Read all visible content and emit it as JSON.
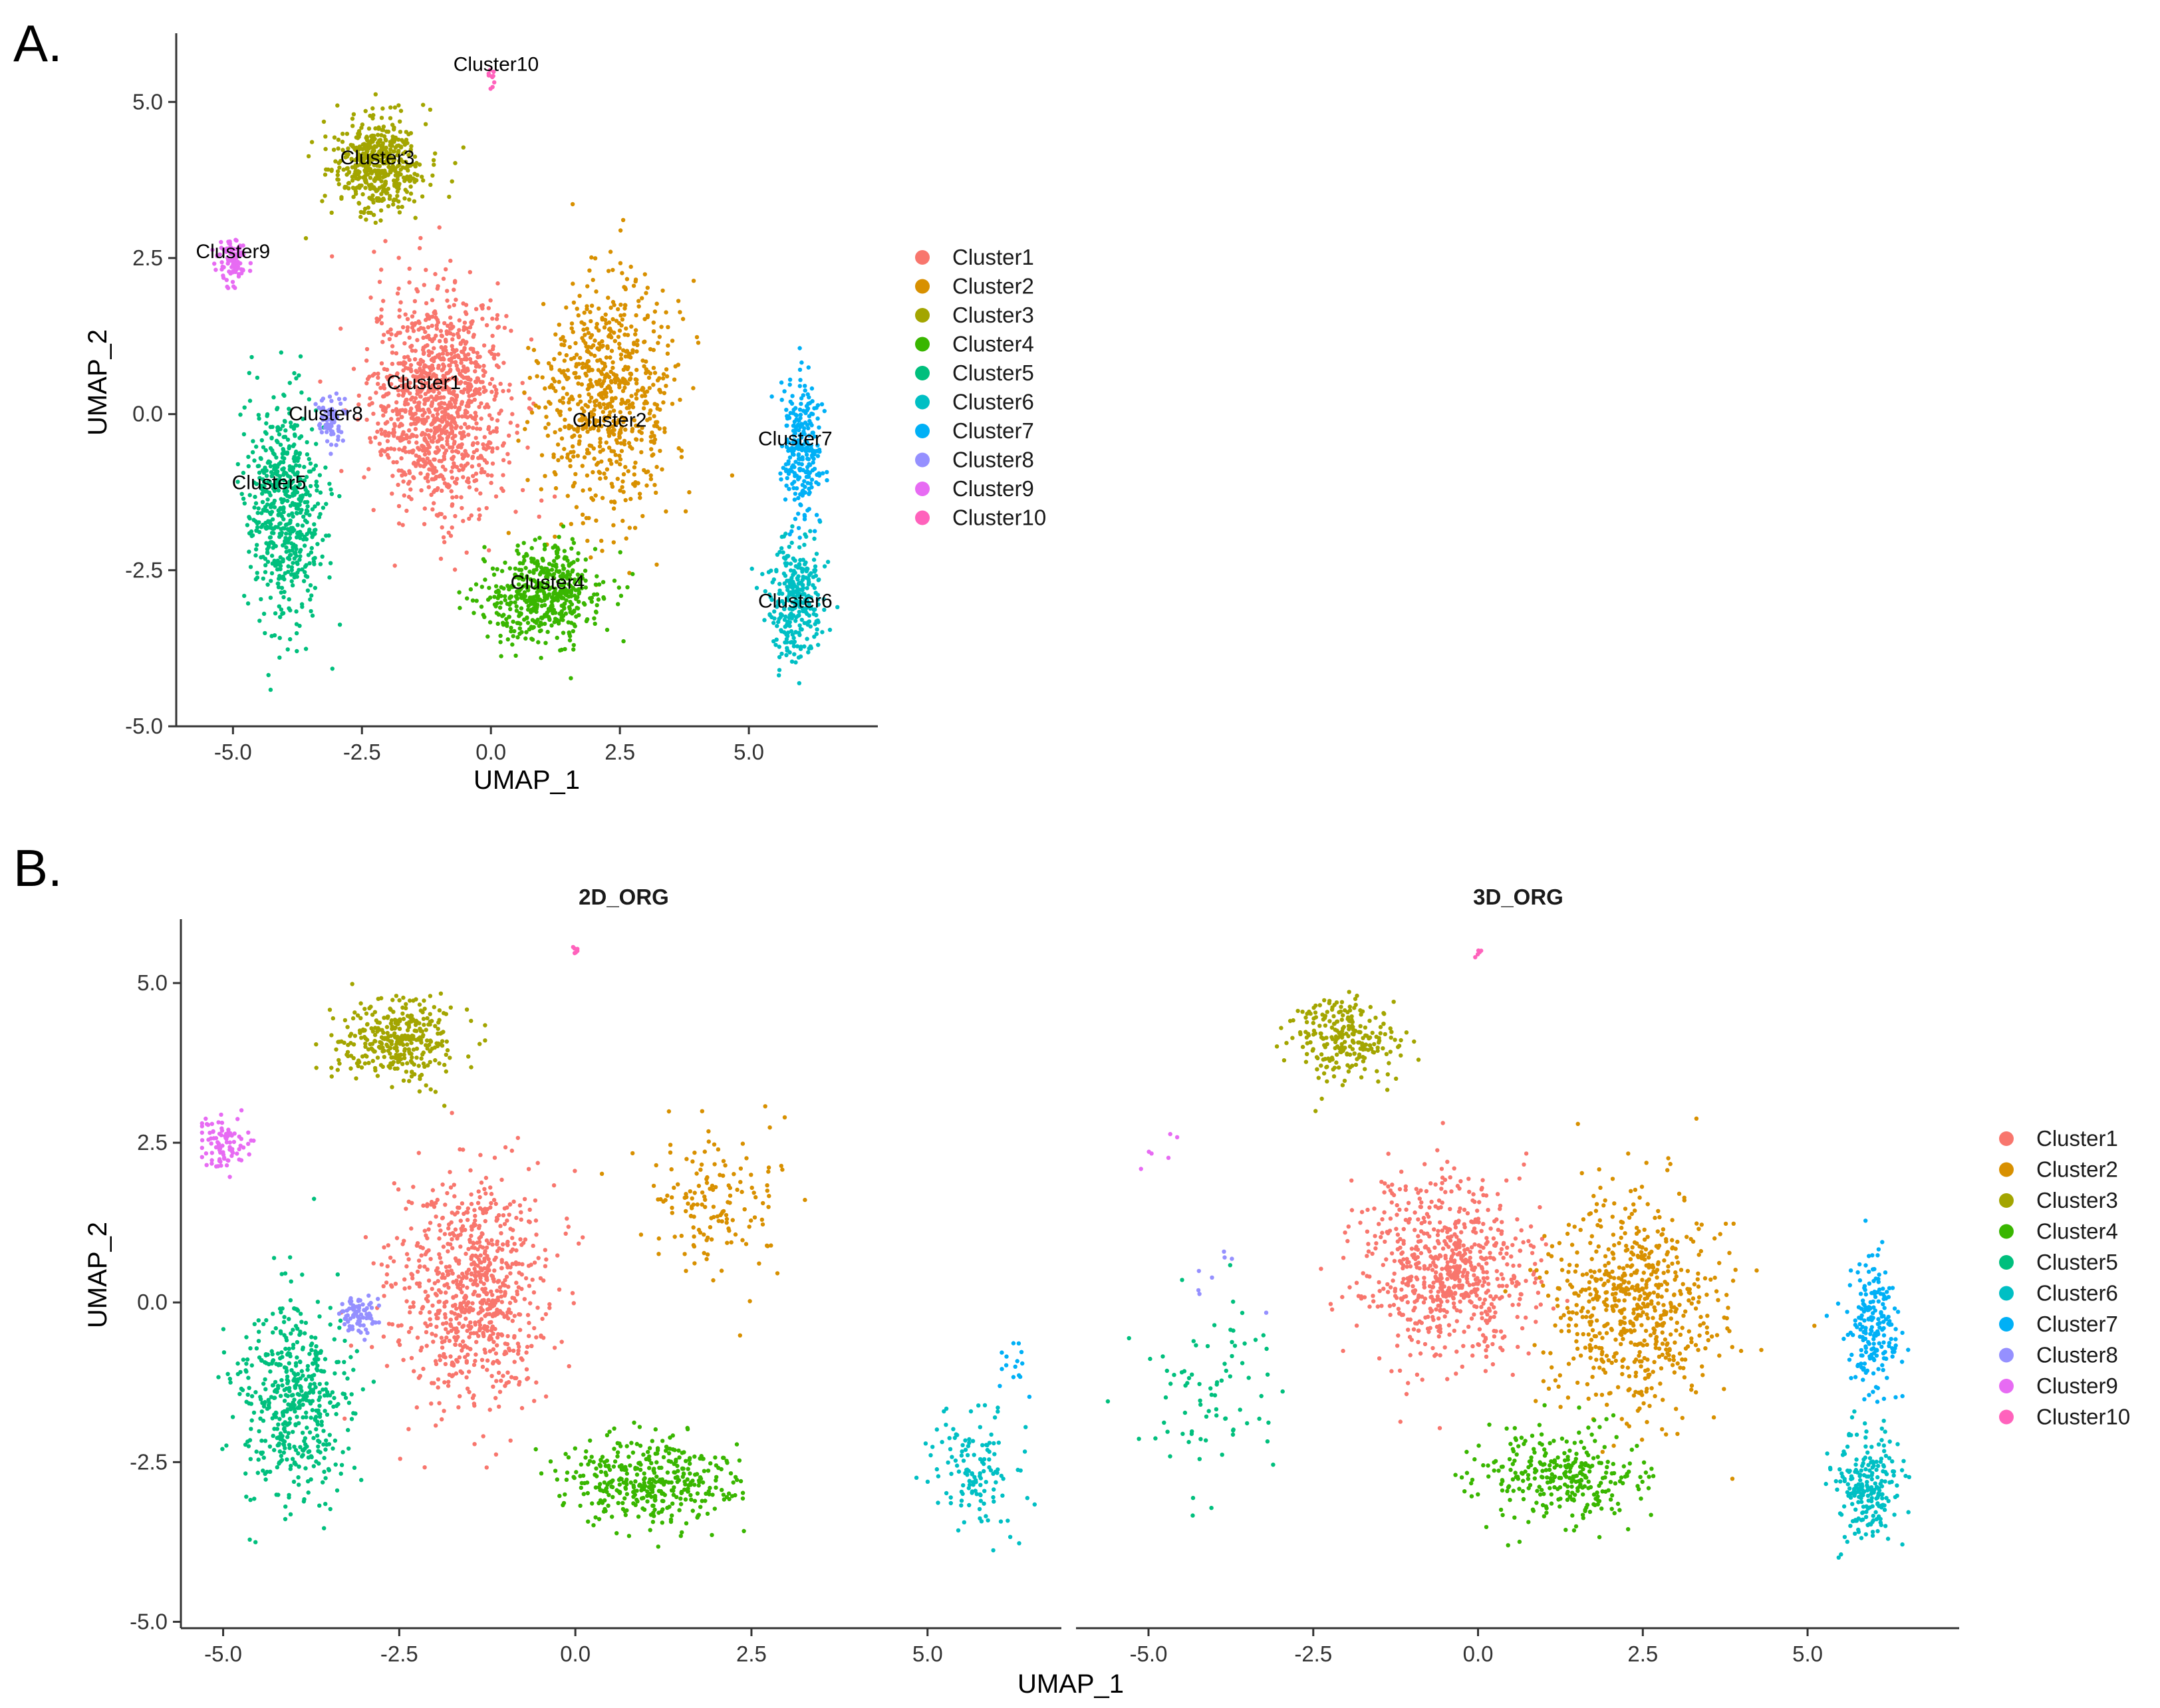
{
  "figure": {
    "panel_a_letter": "A.",
    "panel_b_letter": "B."
  },
  "colors": {
    "Cluster1": "#F8766D",
    "Cluster2": "#D89000",
    "Cluster3": "#A3A500",
    "Cluster4": "#39B600",
    "Cluster5": "#00BF7D",
    "Cluster6": "#00BFC4",
    "Cluster7": "#00B0F6",
    "Cluster8": "#9590FF",
    "Cluster9": "#E76BF3",
    "Cluster10": "#FF62BC"
  },
  "legend": [
    "Cluster1",
    "Cluster2",
    "Cluster3",
    "Cluster4",
    "Cluster5",
    "Cluster6",
    "Cluster7",
    "Cluster8",
    "Cluster9",
    "Cluster10"
  ],
  "chart_data": [
    {
      "id": "A",
      "type": "scatter",
      "title": "",
      "xlabel": "UMAP_1",
      "ylabel": "UMAP_2",
      "xlim": [
        -6.1,
        7.5
      ],
      "ylim": [
        -5.0,
        6.1
      ],
      "xticks": [
        -5.0,
        -2.5,
        0.0,
        2.5,
        5.0
      ],
      "xtick_labels": [
        "-5.0",
        "-2.5",
        "0.0",
        "2.5",
        "5.0"
      ],
      "yticks": [
        -5.0,
        -2.5,
        0.0,
        2.5,
        5.0
      ],
      "ytick_labels": [
        "-5.0",
        "-2.5",
        "0.0",
        "2.5",
        "5.0"
      ],
      "legend_position": "right",
      "cluster_labels": [
        {
          "text": "Cluster10",
          "x": 0.1,
          "y": 5.5
        },
        {
          "text": "Cluster3",
          "x": -2.2,
          "y": 4.0
        },
        {
          "text": "Cluster9",
          "x": -5.0,
          "y": 2.5
        },
        {
          "text": "Cluster1",
          "x": -1.3,
          "y": 0.4
        },
        {
          "text": "Cluster8",
          "x": -3.2,
          "y": -0.1
        },
        {
          "text": "Cluster2",
          "x": 2.3,
          "y": -0.2
        },
        {
          "text": "Cluster7",
          "x": 5.9,
          "y": -0.5
        },
        {
          "text": "Cluster5",
          "x": -4.3,
          "y": -1.2
        },
        {
          "text": "Cluster4",
          "x": 1.1,
          "y": -2.8
        },
        {
          "text": "Cluster6",
          "x": 5.9,
          "y": -3.1
        }
      ],
      "clusters": [
        {
          "name": "Cluster1",
          "center": [
            -1.0,
            0.2
          ],
          "spread": [
            1.2,
            1.6
          ],
          "n": 1100
        },
        {
          "name": "Cluster2",
          "center": [
            2.3,
            0.3
          ],
          "spread": [
            1.2,
            1.7
          ],
          "n": 700
        },
        {
          "name": "Cluster3",
          "center": [
            -2.2,
            4.0
          ],
          "spread": [
            0.8,
            0.7
          ],
          "n": 500
        },
        {
          "name": "Cluster4",
          "center": [
            1.0,
            -2.9
          ],
          "spread": [
            1.1,
            0.7
          ],
          "n": 500
        },
        {
          "name": "Cluster5",
          "center": [
            -4.0,
            -1.5
          ],
          "spread": [
            0.7,
            1.5
          ],
          "n": 600
        },
        {
          "name": "Cluster6",
          "center": [
            5.9,
            -3.0
          ],
          "spread": [
            0.45,
            0.9
          ],
          "n": 300
        },
        {
          "name": "Cluster7",
          "center": [
            6.0,
            -0.5
          ],
          "spread": [
            0.35,
            1.0
          ],
          "n": 250
        },
        {
          "name": "Cluster8",
          "center": [
            -3.1,
            -0.1
          ],
          "spread": [
            0.25,
            0.3
          ],
          "n": 80
        },
        {
          "name": "Cluster9",
          "center": [
            -5.0,
            2.5
          ],
          "spread": [
            0.25,
            0.35
          ],
          "n": 90
        },
        {
          "name": "Cluster10",
          "center": [
            0.0,
            5.4
          ],
          "spread": [
            0.08,
            0.15
          ],
          "n": 10
        }
      ]
    },
    {
      "id": "B-2D_ORG",
      "type": "scatter",
      "title": "2D_ORG",
      "xlabel": "UMAP_1",
      "ylabel": "UMAP_2",
      "xlim": [
        -5.6,
        6.9
      ],
      "ylim": [
        -5.1,
        6.0
      ],
      "xticks": [
        -5.0,
        -2.5,
        0.0,
        2.5,
        5.0
      ],
      "xtick_labels": [
        "-5.0",
        "-2.5",
        "0.0",
        "2.5",
        "5.0"
      ],
      "yticks": [
        -5.0,
        -2.5,
        0.0,
        2.5,
        5.0
      ],
      "ytick_labels": [
        "-5.0",
        "-2.5",
        "0.0",
        "2.5",
        "5.0"
      ],
      "clusters": [
        {
          "name": "Cluster1",
          "center": [
            -1.5,
            0.2
          ],
          "spread": [
            1.0,
            1.6
          ],
          "n": 800
        },
        {
          "name": "Cluster2",
          "center": [
            2.0,
            1.5
          ],
          "spread": [
            0.9,
            1.0
          ],
          "n": 150
        },
        {
          "name": "Cluster3",
          "center": [
            -2.5,
            4.1
          ],
          "spread": [
            0.8,
            0.6
          ],
          "n": 350
        },
        {
          "name": "Cluster4",
          "center": [
            1.0,
            -2.8
          ],
          "spread": [
            1.1,
            0.6
          ],
          "n": 400
        },
        {
          "name": "Cluster5",
          "center": [
            -4.0,
            -1.5
          ],
          "spread": [
            0.7,
            1.4
          ],
          "n": 500
        },
        {
          "name": "Cluster6",
          "center": [
            5.7,
            -2.6
          ],
          "spread": [
            0.6,
            0.9
          ],
          "n": 130
        },
        {
          "name": "Cluster7",
          "center": [
            6.2,
            -1.0
          ],
          "spread": [
            0.2,
            0.4
          ],
          "n": 15
        },
        {
          "name": "Cluster8",
          "center": [
            -3.1,
            -0.2
          ],
          "spread": [
            0.25,
            0.3
          ],
          "n": 80
        },
        {
          "name": "Cluster9",
          "center": [
            -5.0,
            2.5
          ],
          "spread": [
            0.3,
            0.35
          ],
          "n": 90
        },
        {
          "name": "Cluster10",
          "center": [
            0.0,
            5.5
          ],
          "spread": [
            0.05,
            0.1
          ],
          "n": 6
        }
      ]
    },
    {
      "id": "B-3D_ORG",
      "type": "scatter",
      "title": "3D_ORG",
      "xlabel": "UMAP_1",
      "ylabel": "UMAP_2",
      "xlim": [
        -6.1,
        7.3
      ],
      "ylim": [
        -5.1,
        6.0
      ],
      "xticks": [
        -5.0,
        -2.5,
        0.0,
        2.5,
        5.0
      ],
      "xtick_labels": [
        "-5.0",
        "-2.5",
        "0.0",
        "2.5",
        "5.0"
      ],
      "yticks": [],
      "ytick_labels": [],
      "legend_position": "right",
      "clusters": [
        {
          "name": "Cluster1",
          "center": [
            -0.5,
            0.5
          ],
          "spread": [
            1.2,
            1.3
          ],
          "n": 700
        },
        {
          "name": "Cluster2",
          "center": [
            2.4,
            0.0
          ],
          "spread": [
            1.2,
            1.6
          ],
          "n": 650
        },
        {
          "name": "Cluster3",
          "center": [
            -2.0,
            4.1
          ],
          "spread": [
            0.7,
            0.6
          ],
          "n": 250
        },
        {
          "name": "Cluster4",
          "center": [
            1.3,
            -2.7
          ],
          "spread": [
            1.1,
            0.7
          ],
          "n": 300
        },
        {
          "name": "Cluster5",
          "center": [
            -4.0,
            -1.5
          ],
          "spread": [
            1.0,
            1.5
          ],
          "n": 80
        },
        {
          "name": "Cluster6",
          "center": [
            5.9,
            -2.9
          ],
          "spread": [
            0.45,
            0.8
          ],
          "n": 220
        },
        {
          "name": "Cluster7",
          "center": [
            6.0,
            -0.4
          ],
          "spread": [
            0.35,
            0.9
          ],
          "n": 200
        },
        {
          "name": "Cluster8",
          "center": [
            -3.8,
            0.5
          ],
          "spread": [
            0.8,
            1.0
          ],
          "n": 8
        },
        {
          "name": "Cluster9",
          "center": [
            -4.8,
            2.4
          ],
          "spread": [
            0.3,
            0.4
          ],
          "n": 6
        },
        {
          "name": "Cluster10",
          "center": [
            0.0,
            5.5
          ],
          "spread": [
            0.05,
            0.1
          ],
          "n": 5
        }
      ]
    }
  ]
}
